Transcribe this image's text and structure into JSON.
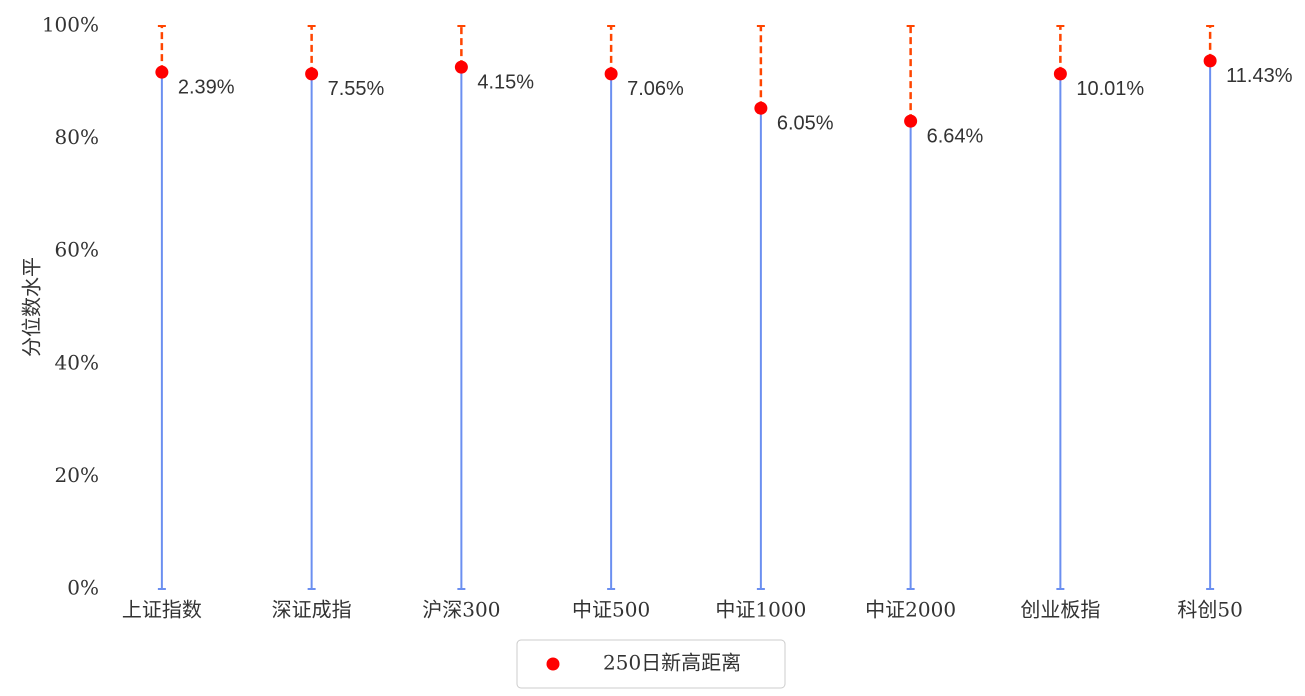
{
  "chart_data": {
    "type": "lollipop",
    "y_label": "分位数水平",
    "categories": [
      "上证指数",
      "深证成指",
      "沪深300",
      "中证500",
      "中证1000",
      "中证2000",
      "创业板指",
      "科创50"
    ],
    "series": [
      {
        "name": "250日新高距离",
        "color": "#ff0000",
        "values": [
          91.8,
          91.5,
          92.7,
          91.5,
          85.4,
          83.1,
          91.5,
          93.8
        ],
        "value_labels": null
      }
    ],
    "distance_labels": [
      "2.39%",
      "7.55%",
      "4.15%",
      "7.06%",
      "6.05%",
      "6.64%",
      "10.01%",
      "11.43%"
    ],
    "stem_color": "#6b8ff0",
    "gap_color": "#ff4500",
    "ylim": [
      0,
      100
    ],
    "yticks": [
      {
        "value": 0,
        "label": "0%"
      },
      {
        "value": 20,
        "label": "20%"
      },
      {
        "value": 40,
        "label": "40%"
      },
      {
        "value": 60,
        "label": "60%"
      },
      {
        "value": 80,
        "label": "80%"
      },
      {
        "value": 100,
        "label": "100%"
      }
    ],
    "legend": "bottom"
  }
}
